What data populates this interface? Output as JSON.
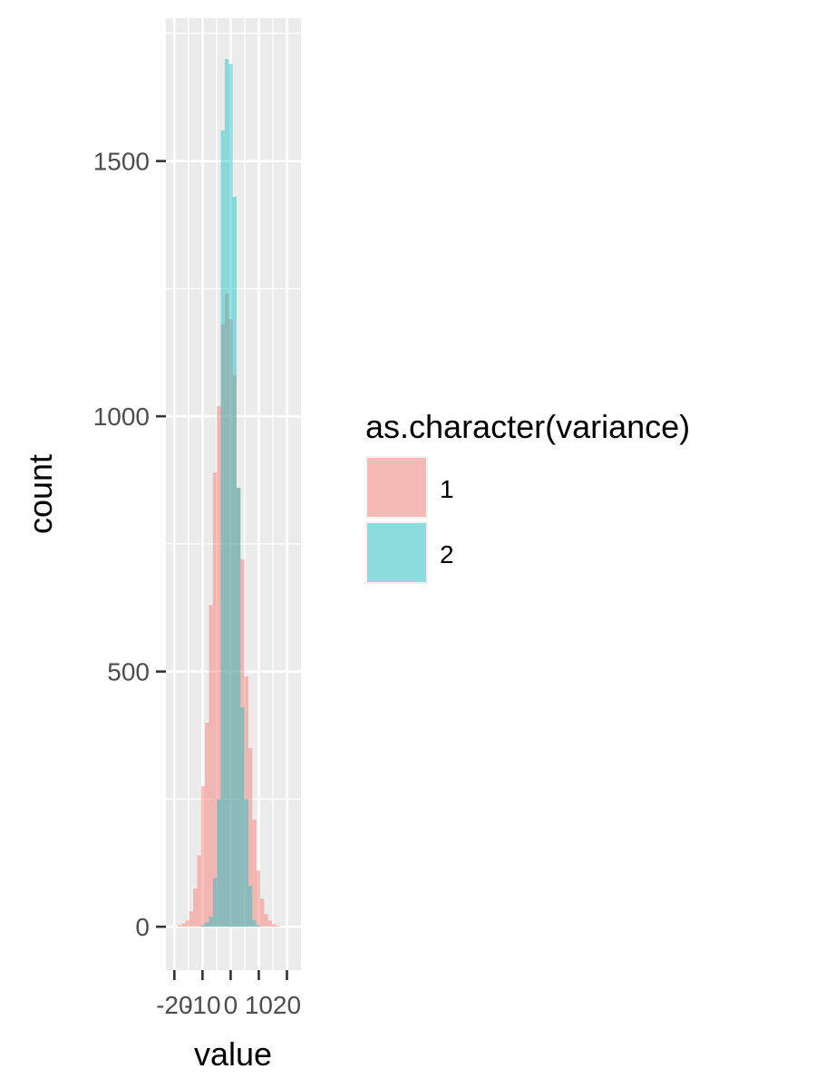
{
  "chart_data": {
    "type": "bar",
    "subtype": "overlapping histogram",
    "title": "",
    "xlabel": "value",
    "ylabel": "count",
    "xlim": [
      -23,
      25
    ],
    "ylim": [
      -85,
      1780
    ],
    "x_ticks": [
      -20,
      -10,
      0,
      10,
      20
    ],
    "x_tick_labels": [
      "-20",
      "-10",
      "0",
      "10",
      "20"
    ],
    "y_ticks": [
      0,
      500,
      1000,
      1500
    ],
    "y_tick_labels": [
      "0",
      "500",
      "1000",
      "1500"
    ],
    "y_minor_ticks": [
      250,
      750,
      1250,
      1750
    ],
    "grid": true,
    "legend": {
      "title": "as.character(variance)",
      "position": "right",
      "entries": [
        "1",
        "2"
      ]
    },
    "bin_width": 1.4,
    "series": [
      {
        "name": "1",
        "color": "#F8766D",
        "opacity": 0.45,
        "bins": [
          {
            "x": -18.2,
            "count": 3
          },
          {
            "x": -16.8,
            "count": 6
          },
          {
            "x": -15.4,
            "count": 12
          },
          {
            "x": -14.0,
            "count": 30
          },
          {
            "x": -12.6,
            "count": 75
          },
          {
            "x": -11.2,
            "count": 140
          },
          {
            "x": -9.8,
            "count": 275
          },
          {
            "x": -8.4,
            "count": 400
          },
          {
            "x": -7.0,
            "count": 630
          },
          {
            "x": -5.6,
            "count": 890
          },
          {
            "x": -4.2,
            "count": 1020
          },
          {
            "x": -2.8,
            "count": 1180
          },
          {
            "x": -1.4,
            "count": 1240
          },
          {
            "x": 0.0,
            "count": 1190
          },
          {
            "x": 1.4,
            "count": 1080
          },
          {
            "x": 2.8,
            "count": 860
          },
          {
            "x": 4.2,
            "count": 720
          },
          {
            "x": 5.6,
            "count": 490
          },
          {
            "x": 7.0,
            "count": 350
          },
          {
            "x": 8.4,
            "count": 210
          },
          {
            "x": 9.8,
            "count": 110
          },
          {
            "x": 11.2,
            "count": 55
          },
          {
            "x": 12.6,
            "count": 25
          },
          {
            "x": 14.0,
            "count": 12
          },
          {
            "x": 15.4,
            "count": 5
          },
          {
            "x": 16.8,
            "count": 2
          }
        ]
      },
      {
        "name": "2",
        "color": "#00BFC4",
        "opacity": 0.42,
        "bins": [
          {
            "x": -9.8,
            "count": 3
          },
          {
            "x": -8.4,
            "count": 8
          },
          {
            "x": -7.0,
            "count": 20
          },
          {
            "x": -5.6,
            "count": 95
          },
          {
            "x": -4.2,
            "count": 250
          },
          {
            "x": -2.8,
            "count": 1560
          },
          {
            "x": -1.4,
            "count": 1700
          },
          {
            "x": 0.0,
            "count": 1690
          },
          {
            "x": 1.4,
            "count": 1430
          },
          {
            "x": 2.8,
            "count": 860
          },
          {
            "x": 4.2,
            "count": 430
          },
          {
            "x": 5.6,
            "count": 250
          },
          {
            "x": 7.0,
            "count": 80
          },
          {
            "x": 8.4,
            "count": 12
          },
          {
            "x": 9.8,
            "count": 3
          }
        ]
      }
    ]
  }
}
